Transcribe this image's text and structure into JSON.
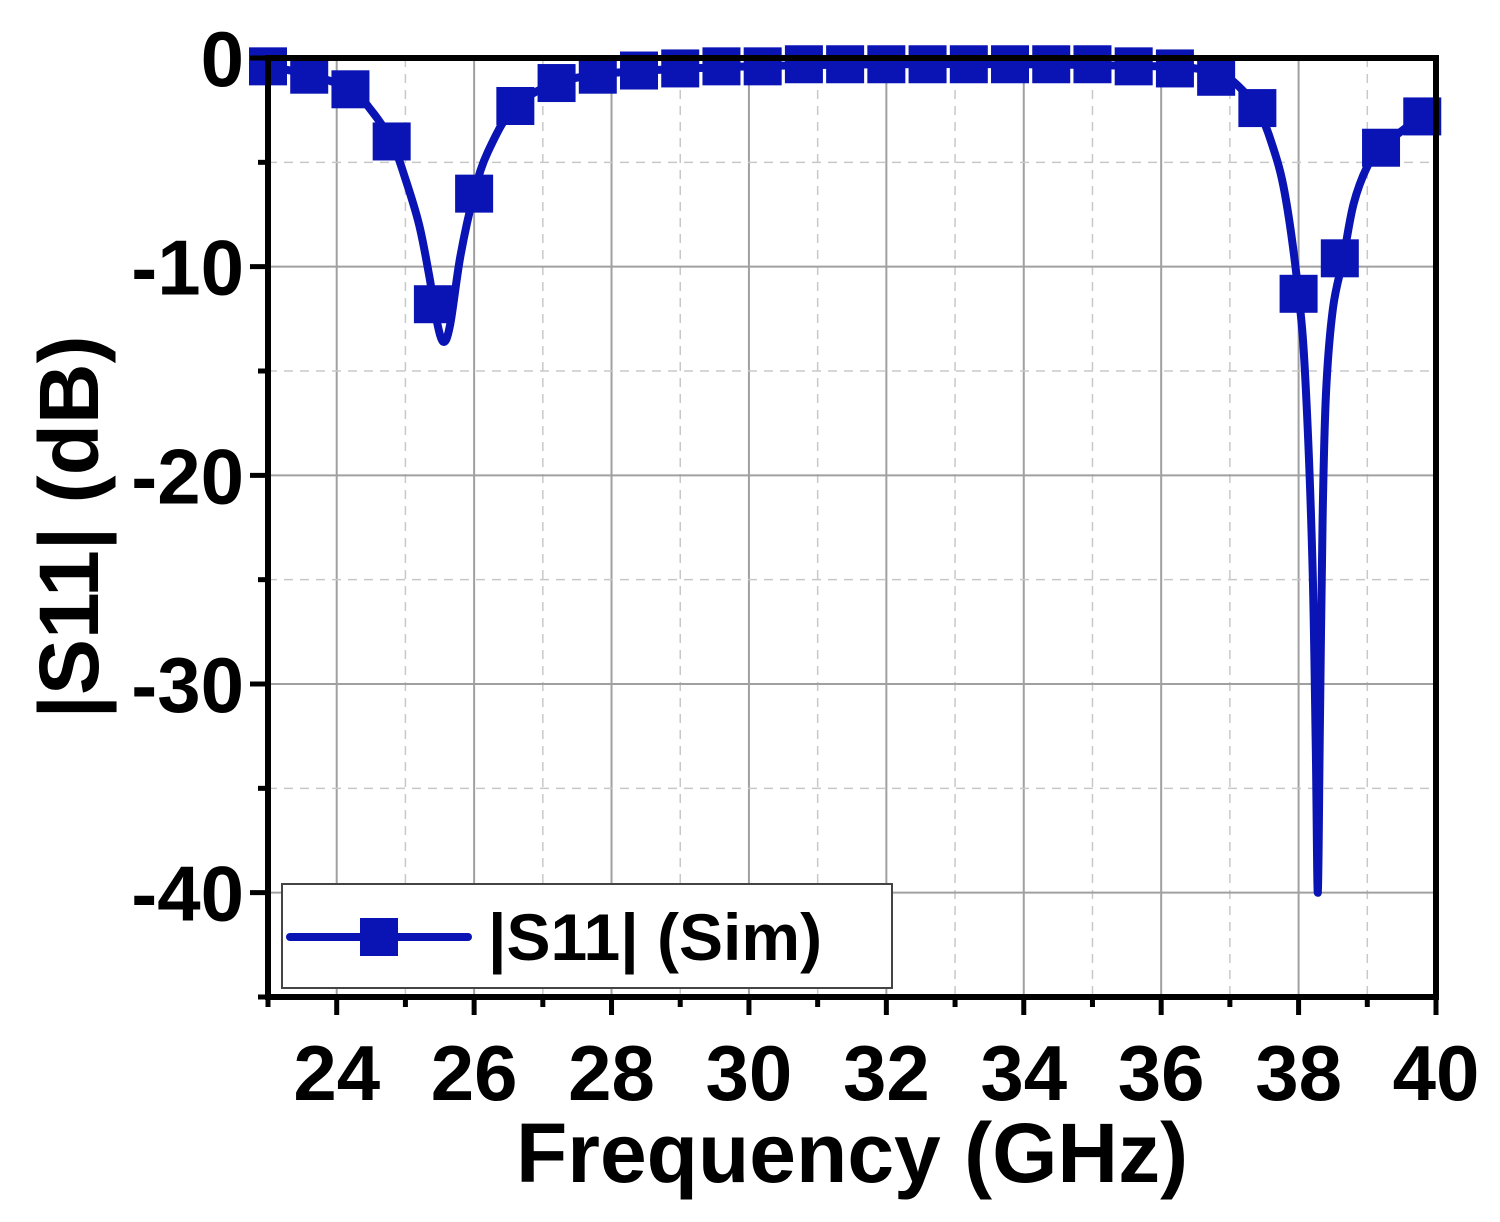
{
  "chart_data": {
    "type": "line",
    "xlabel": "Frequency (GHz)",
    "ylabel": "|S11| (dB)",
    "xlim": [
      23,
      40
    ],
    "ylim": [
      -45,
      0
    ],
    "x_ticks": [
      24,
      26,
      28,
      30,
      32,
      34,
      36,
      38,
      40
    ],
    "y_ticks": [
      0,
      -10,
      -20,
      -30,
      -40
    ],
    "x_minor_step": 1,
    "y_minor_step": 5,
    "grid": true,
    "legend_position": "bottom-left",
    "color": "#0a14b4",
    "series": [
      {
        "name": "|S11| (Sim)",
        "marker": "square",
        "curve_x": [
          23.0,
          23.6,
          24.2,
          24.5,
          24.8,
          25.0,
          25.2,
          25.35,
          25.45,
          25.55,
          25.65,
          25.8,
          26.0,
          26.2,
          26.6,
          27.2,
          27.8,
          28.5,
          30.0,
          32.0,
          34.0,
          36.0,
          36.5,
          36.8,
          37.0,
          37.2,
          37.4,
          37.6,
          37.8,
          38.0,
          38.1,
          38.2,
          38.25,
          38.28,
          38.31,
          38.35,
          38.4,
          38.5,
          38.65,
          38.8,
          39.0,
          39.2,
          39.5,
          39.8,
          40.0
        ],
        "curve_y": [
          -0.4,
          -0.8,
          -1.5,
          -2.5,
          -4.0,
          -5.8,
          -8.0,
          -10.5,
          -12.5,
          -13.6,
          -12.8,
          -9.5,
          -6.5,
          -4.5,
          -2.3,
          -1.2,
          -0.8,
          -0.6,
          -0.4,
          -0.3,
          -0.3,
          -0.4,
          -0.5,
          -0.7,
          -1.0,
          -1.6,
          -2.4,
          -4.0,
          -6.5,
          -11.3,
          -15.5,
          -24.0,
          -33.0,
          -40.0,
          -32.0,
          -22.0,
          -16.0,
          -12.0,
          -9.6,
          -7.0,
          -5.2,
          -4.3,
          -3.5,
          -2.8,
          -2.6
        ],
        "markers_x": [
          23.0,
          23.6,
          24.2,
          24.8,
          25.4,
          26.0,
          26.6,
          27.2,
          27.8,
          28.4,
          29.0,
          29.6,
          30.2,
          30.8,
          31.4,
          32.0,
          32.6,
          33.2,
          33.8,
          34.4,
          35.0,
          35.6,
          36.2,
          36.8,
          37.4,
          38.0,
          38.6,
          39.2,
          39.8
        ],
        "markers_y": [
          -0.4,
          -0.8,
          -1.5,
          -4.0,
          -11.8,
          -6.5,
          -2.3,
          -1.2,
          -0.8,
          -0.6,
          -0.5,
          -0.4,
          -0.4,
          -0.3,
          -0.3,
          -0.3,
          -0.3,
          -0.3,
          -0.3,
          -0.3,
          -0.3,
          -0.4,
          -0.5,
          -0.9,
          -2.4,
          -11.3,
          -9.6,
          -4.3,
          -2.8
        ]
      }
    ]
  }
}
